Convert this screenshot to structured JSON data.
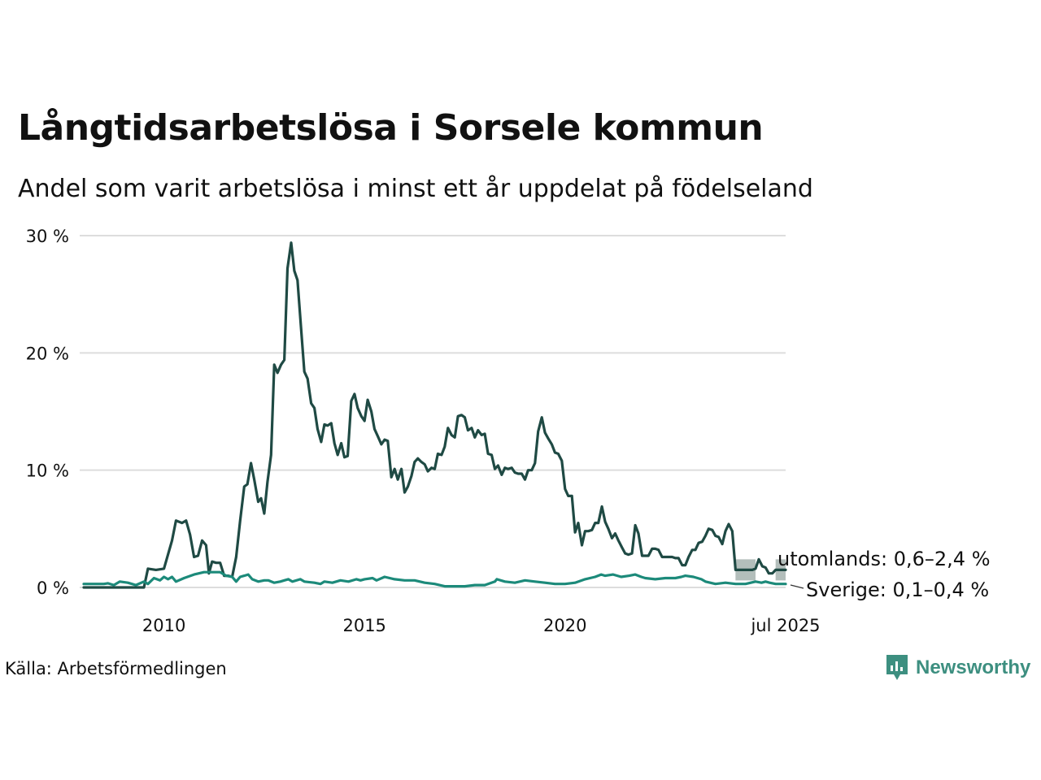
{
  "title": "Långtidsarbetslösa i Sorsele kommun",
  "subtitle": "Andel som varit arbetslösa i minst ett år uppdelat på födelseland",
  "source": "Källa: Arbetsförmedlingen",
  "brand": "Newsworthy",
  "colors": {
    "utomlands": "#1f4a44",
    "sverige": "#1c8a7a",
    "band": "#9aa8a4",
    "grid": "#dddddd",
    "brand": "#3d8f80"
  },
  "chart_data": {
    "type": "line",
    "title": "Långtidsarbetslösa i Sorsele kommun",
    "ylim": [
      0,
      30
    ],
    "yticks": [
      0,
      10,
      20,
      30
    ],
    "ytick_labels": [
      "0 %",
      "10 %",
      "20 %",
      "30 %"
    ],
    "xlim": [
      2008.0,
      2025.5
    ],
    "xticks": [
      2010,
      2015,
      2020,
      2025.5
    ],
    "xtick_labels": [
      "2010",
      "2015",
      "2020",
      "jul 2025"
    ],
    "grid": true,
    "series": [
      {
        "name": "utomlands",
        "end_label": "utomlands: 0,6–2,4 %",
        "points": [
          [
            2008.0,
            0.0
          ],
          [
            2009.5,
            0.0
          ],
          [
            2009.6,
            1.6
          ],
          [
            2009.8,
            1.5
          ],
          [
            2010.0,
            1.6
          ],
          [
            2010.2,
            4.0
          ],
          [
            2010.3,
            5.7
          ],
          [
            2010.45,
            5.5
          ],
          [
            2010.55,
            5.7
          ],
          [
            2010.65,
            4.5
          ],
          [
            2010.75,
            2.6
          ],
          [
            2010.85,
            2.7
          ],
          [
            2010.95,
            4.0
          ],
          [
            2011.05,
            3.6
          ],
          [
            2011.12,
            1.2
          ],
          [
            2011.2,
            2.2
          ],
          [
            2011.3,
            2.1
          ],
          [
            2011.4,
            2.1
          ],
          [
            2011.5,
            1.0
          ],
          [
            2011.6,
            1.0
          ],
          [
            2011.7,
            0.9
          ],
          [
            2011.8,
            2.6
          ],
          [
            2011.9,
            5.7
          ],
          [
            2012.0,
            8.6
          ],
          [
            2012.08,
            8.8
          ],
          [
            2012.17,
            10.6
          ],
          [
            2012.25,
            9.2
          ],
          [
            2012.35,
            7.3
          ],
          [
            2012.42,
            7.6
          ],
          [
            2012.5,
            6.3
          ],
          [
            2012.58,
            9.0
          ],
          [
            2012.67,
            11.3
          ],
          [
            2012.75,
            19.0
          ],
          [
            2012.83,
            18.3
          ],
          [
            2012.92,
            19.0
          ],
          [
            2013.0,
            19.4
          ],
          [
            2013.08,
            27.2
          ],
          [
            2013.17,
            29.4
          ],
          [
            2013.25,
            27.0
          ],
          [
            2013.33,
            26.2
          ],
          [
            2013.42,
            22.0
          ],
          [
            2013.5,
            18.4
          ],
          [
            2013.58,
            17.8
          ],
          [
            2013.67,
            15.7
          ],
          [
            2013.75,
            15.3
          ],
          [
            2013.83,
            13.5
          ],
          [
            2013.92,
            12.4
          ],
          [
            2014.0,
            13.9
          ],
          [
            2014.08,
            13.8
          ],
          [
            2014.17,
            14.0
          ],
          [
            2014.25,
            12.3
          ],
          [
            2014.33,
            11.3
          ],
          [
            2014.42,
            12.3
          ],
          [
            2014.5,
            11.1
          ],
          [
            2014.58,
            11.2
          ],
          [
            2014.67,
            15.9
          ],
          [
            2014.75,
            16.5
          ],
          [
            2014.83,
            15.3
          ],
          [
            2014.92,
            14.6
          ],
          [
            2015.0,
            14.2
          ],
          [
            2015.08,
            16.0
          ],
          [
            2015.17,
            15.0
          ],
          [
            2015.25,
            13.5
          ],
          [
            2015.33,
            12.9
          ],
          [
            2015.42,
            12.2
          ],
          [
            2015.5,
            12.6
          ],
          [
            2015.58,
            12.5
          ],
          [
            2015.67,
            9.4
          ],
          [
            2015.75,
            10.1
          ],
          [
            2015.83,
            9.2
          ],
          [
            2015.92,
            10.1
          ],
          [
            2016.0,
            8.1
          ],
          [
            2016.08,
            8.6
          ],
          [
            2016.17,
            9.5
          ],
          [
            2016.25,
            10.7
          ],
          [
            2016.33,
            11.0
          ],
          [
            2016.42,
            10.7
          ],
          [
            2016.5,
            10.5
          ],
          [
            2016.58,
            9.9
          ],
          [
            2016.67,
            10.2
          ],
          [
            2016.75,
            10.1
          ],
          [
            2016.83,
            11.4
          ],
          [
            2016.92,
            11.3
          ],
          [
            2017.0,
            12.0
          ],
          [
            2017.08,
            13.6
          ],
          [
            2017.17,
            13.0
          ],
          [
            2017.25,
            12.8
          ],
          [
            2017.33,
            14.6
          ],
          [
            2017.42,
            14.7
          ],
          [
            2017.5,
            14.5
          ],
          [
            2017.58,
            13.4
          ],
          [
            2017.67,
            13.6
          ],
          [
            2017.75,
            12.8
          ],
          [
            2017.83,
            13.4
          ],
          [
            2017.92,
            13.0
          ],
          [
            2018.0,
            13.1
          ],
          [
            2018.08,
            11.4
          ],
          [
            2018.17,
            11.3
          ],
          [
            2018.25,
            10.1
          ],
          [
            2018.33,
            10.4
          ],
          [
            2018.42,
            9.6
          ],
          [
            2018.5,
            10.2
          ],
          [
            2018.58,
            10.1
          ],
          [
            2018.67,
            10.2
          ],
          [
            2018.75,
            9.8
          ],
          [
            2018.83,
            9.7
          ],
          [
            2018.92,
            9.7
          ],
          [
            2019.0,
            9.2
          ],
          [
            2019.08,
            10.0
          ],
          [
            2019.17,
            10.0
          ],
          [
            2019.25,
            10.6
          ],
          [
            2019.33,
            13.3
          ],
          [
            2019.42,
            14.5
          ],
          [
            2019.5,
            13.2
          ],
          [
            2019.58,
            12.7
          ],
          [
            2019.67,
            12.2
          ],
          [
            2019.75,
            11.5
          ],
          [
            2019.83,
            11.4
          ],
          [
            2019.92,
            10.8
          ],
          [
            2020.0,
            8.4
          ],
          [
            2020.08,
            7.8
          ],
          [
            2020.17,
            7.8
          ],
          [
            2020.25,
            4.7
          ],
          [
            2020.33,
            5.5
          ],
          [
            2020.42,
            3.6
          ],
          [
            2020.5,
            4.8
          ],
          [
            2020.58,
            4.8
          ],
          [
            2020.67,
            4.9
          ],
          [
            2020.75,
            5.5
          ],
          [
            2020.83,
            5.5
          ],
          [
            2020.92,
            6.9
          ],
          [
            2021.0,
            5.6
          ],
          [
            2021.08,
            5.0
          ],
          [
            2021.17,
            4.2
          ],
          [
            2021.25,
            4.6
          ],
          [
            2021.33,
            4.0
          ],
          [
            2021.42,
            3.4
          ],
          [
            2021.5,
            2.9
          ],
          [
            2021.58,
            2.8
          ],
          [
            2021.67,
            2.9
          ],
          [
            2021.75,
            5.3
          ],
          [
            2021.83,
            4.6
          ],
          [
            2021.92,
            2.7
          ],
          [
            2022.0,
            2.7
          ],
          [
            2022.08,
            2.7
          ],
          [
            2022.17,
            3.3
          ],
          [
            2022.25,
            3.3
          ],
          [
            2022.33,
            3.2
          ],
          [
            2022.42,
            2.6
          ],
          [
            2022.5,
            2.6
          ],
          [
            2022.58,
            2.6
          ],
          [
            2022.67,
            2.6
          ],
          [
            2022.75,
            2.5
          ],
          [
            2022.83,
            2.5
          ],
          [
            2022.92,
            1.9
          ],
          [
            2023.0,
            1.9
          ],
          [
            2023.08,
            2.6
          ],
          [
            2023.17,
            3.2
          ],
          [
            2023.25,
            3.2
          ],
          [
            2023.33,
            3.8
          ],
          [
            2023.42,
            3.9
          ],
          [
            2023.5,
            4.4
          ],
          [
            2023.58,
            5.0
          ],
          [
            2023.67,
            4.9
          ],
          [
            2023.75,
            4.4
          ],
          [
            2023.83,
            4.3
          ],
          [
            2023.92,
            3.7
          ],
          [
            2024.0,
            4.8
          ],
          [
            2024.08,
            5.4
          ],
          [
            2024.17,
            4.8
          ],
          [
            2024.25,
            1.5
          ],
          [
            2024.5,
            1.5
          ],
          [
            2024.67,
            1.5
          ],
          [
            2024.75,
            1.6
          ],
          [
            2024.83,
            2.4
          ],
          [
            2024.92,
            1.8
          ],
          [
            2025.0,
            1.7
          ],
          [
            2025.08,
            1.2
          ],
          [
            2025.17,
            1.2
          ],
          [
            2025.25,
            1.5
          ],
          [
            2025.5,
            1.5
          ]
        ],
        "range_band": [
          [
            2024.25,
            0.6,
            2.4
          ],
          [
            2024.75,
            0.6,
            2.4
          ],
          [
            2024.76,
            null,
            null
          ],
          [
            2025.24,
            null,
            null
          ],
          [
            2025.25,
            0.6,
            2.4
          ],
          [
            2025.5,
            0.6,
            2.4
          ]
        ]
      },
      {
        "name": "Sverige",
        "end_label": "Sverige: 0,1–0,4 %",
        "points": [
          [
            2008.0,
            0.3
          ],
          [
            2008.5,
            0.3
          ],
          [
            2008.6,
            0.35
          ],
          [
            2008.75,
            0.2
          ],
          [
            2008.9,
            0.5
          ],
          [
            2009.1,
            0.4
          ],
          [
            2009.3,
            0.2
          ],
          [
            2009.5,
            0.5
          ],
          [
            2009.6,
            0.3
          ],
          [
            2009.75,
            0.8
          ],
          [
            2009.9,
            0.6
          ],
          [
            2010.0,
            0.9
          ],
          [
            2010.1,
            0.7
          ],
          [
            2010.2,
            0.9
          ],
          [
            2010.3,
            0.5
          ],
          [
            2010.5,
            0.8
          ],
          [
            2010.75,
            1.1
          ],
          [
            2011.0,
            1.3
          ],
          [
            2011.2,
            1.3
          ],
          [
            2011.4,
            1.3
          ],
          [
            2011.55,
            1.0
          ],
          [
            2011.7,
            0.9
          ],
          [
            2011.8,
            0.5
          ],
          [
            2011.9,
            0.9
          ],
          [
            2012.0,
            1.0
          ],
          [
            2012.1,
            1.1
          ],
          [
            2012.2,
            0.7
          ],
          [
            2012.35,
            0.5
          ],
          [
            2012.5,
            0.6
          ],
          [
            2012.6,
            0.6
          ],
          [
            2012.75,
            0.4
          ],
          [
            2012.9,
            0.5
          ],
          [
            2013.0,
            0.6
          ],
          [
            2013.1,
            0.7
          ],
          [
            2013.2,
            0.5
          ],
          [
            2013.4,
            0.7
          ],
          [
            2013.5,
            0.5
          ],
          [
            2013.75,
            0.4
          ],
          [
            2013.9,
            0.3
          ],
          [
            2014.0,
            0.5
          ],
          [
            2014.2,
            0.4
          ],
          [
            2014.4,
            0.6
          ],
          [
            2014.6,
            0.5
          ],
          [
            2014.8,
            0.7
          ],
          [
            2014.9,
            0.6
          ],
          [
            2015.0,
            0.7
          ],
          [
            2015.2,
            0.8
          ],
          [
            2015.3,
            0.6
          ],
          [
            2015.5,
            0.9
          ],
          [
            2015.75,
            0.7
          ],
          [
            2016.0,
            0.6
          ],
          [
            2016.25,
            0.6
          ],
          [
            2016.5,
            0.4
          ],
          [
            2016.75,
            0.3
          ],
          [
            2017.0,
            0.1
          ],
          [
            2017.5,
            0.1
          ],
          [
            2017.75,
            0.2
          ],
          [
            2018.0,
            0.2
          ],
          [
            2018.25,
            0.5
          ],
          [
            2018.3,
            0.7
          ],
          [
            2018.5,
            0.5
          ],
          [
            2018.75,
            0.4
          ],
          [
            2019.0,
            0.6
          ],
          [
            2019.25,
            0.5
          ],
          [
            2019.5,
            0.4
          ],
          [
            2019.75,
            0.3
          ],
          [
            2020.0,
            0.3
          ],
          [
            2020.25,
            0.4
          ],
          [
            2020.5,
            0.7
          ],
          [
            2020.75,
            0.9
          ],
          [
            2020.9,
            1.1
          ],
          [
            2021.0,
            1.0
          ],
          [
            2021.2,
            1.1
          ],
          [
            2021.4,
            0.9
          ],
          [
            2021.6,
            1.0
          ],
          [
            2021.75,
            1.1
          ],
          [
            2021.9,
            0.9
          ],
          [
            2022.0,
            0.8
          ],
          [
            2022.25,
            0.7
          ],
          [
            2022.5,
            0.8
          ],
          [
            2022.75,
            0.8
          ],
          [
            2022.9,
            0.9
          ],
          [
            2023.0,
            1.0
          ],
          [
            2023.2,
            0.9
          ],
          [
            2023.4,
            0.7
          ],
          [
            2023.5,
            0.5
          ],
          [
            2023.75,
            0.3
          ],
          [
            2024.0,
            0.4
          ],
          [
            2024.25,
            0.3
          ],
          [
            2024.5,
            0.3
          ],
          [
            2024.75,
            0.5
          ],
          [
            2024.9,
            0.4
          ],
          [
            2025.0,
            0.5
          ],
          [
            2025.1,
            0.4
          ],
          [
            2025.25,
            0.3
          ],
          [
            2025.5,
            0.3
          ]
        ]
      }
    ]
  }
}
